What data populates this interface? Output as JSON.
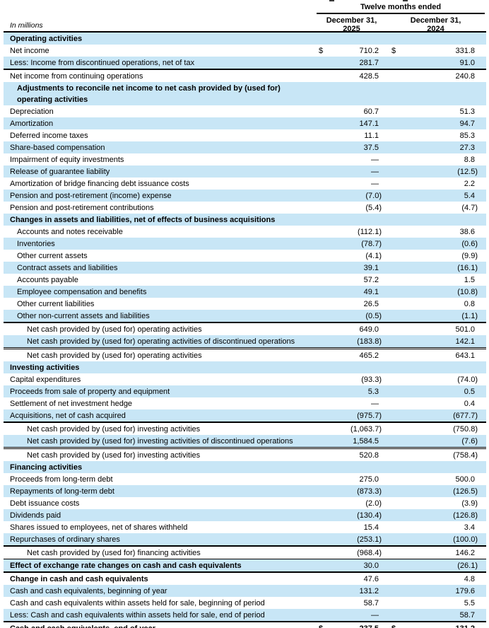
{
  "colors": {
    "row_shade": "#C8E6F6",
    "rule": "#000000",
    "text": "#000000"
  },
  "table": {
    "units_label": "In millions",
    "period_header": "Twelve months ended",
    "columns": [
      {
        "label": "December 31,",
        "year": "2025"
      },
      {
        "label": "December 31,",
        "year": "2024"
      }
    ],
    "rows": [
      {
        "label": "Operating activities",
        "bold": true,
        "shaded": true
      },
      {
        "label": "Net income",
        "v": [
          "710.2",
          "331.8"
        ],
        "dollar": true
      },
      {
        "label": "Less: Income from discontinued operations, net of tax",
        "v": [
          "281.7",
          "91.0"
        ],
        "shaded": true
      },
      {
        "label": "Net income from continuing operations",
        "v": [
          "428.5",
          "240.8"
        ],
        "rule": "thick"
      },
      {
        "label": "Adjustments to reconcile net income to net cash provided by (used for) operating activities",
        "bold": true,
        "shaded": true,
        "indent": 1
      },
      {
        "label": "Depreciation",
        "v": [
          "60.7",
          "51.3"
        ]
      },
      {
        "label": "Amortization",
        "v": [
          "147.1",
          "94.7"
        ],
        "shaded": true
      },
      {
        "label": "Deferred income taxes",
        "v": [
          "11.1",
          "85.3"
        ]
      },
      {
        "label": "Share-based compensation",
        "v": [
          "37.5",
          "27.3"
        ],
        "shaded": true
      },
      {
        "label": "Impairment of equity investments",
        "v": [
          "—",
          "8.8"
        ]
      },
      {
        "label": "Release of guarantee liability",
        "v": [
          "—",
          "(12.5)"
        ],
        "shaded": true
      },
      {
        "label": "Amortization of bridge financing debt issuance costs",
        "v": [
          "—",
          "2.2"
        ]
      },
      {
        "label": "Pension and post-retirement (income) expense",
        "v": [
          "(7.0)",
          "5.4"
        ],
        "shaded": true
      },
      {
        "label": "Pension and post-retirement contributions",
        "v": [
          "(5.4)",
          "(4.7)"
        ]
      },
      {
        "label": "Changes in assets and liabilities, net of effects of business acquisitions",
        "bold": true,
        "shaded": true
      },
      {
        "label": "Accounts and notes receivable",
        "v": [
          "(112.1)",
          "38.6"
        ],
        "indent": 1
      },
      {
        "label": "Inventories",
        "v": [
          "(78.7)",
          "(0.6)"
        ],
        "indent": 1,
        "shaded": true
      },
      {
        "label": "Other current assets",
        "v": [
          "(4.1)",
          "(9.9)"
        ],
        "indent": 1
      },
      {
        "label": "Contract assets and liabilities",
        "v": [
          "39.1",
          "(16.1)"
        ],
        "indent": 1,
        "shaded": true
      },
      {
        "label": "Accounts payable",
        "v": [
          "57.2",
          "1.5"
        ],
        "indent": 1
      },
      {
        "label": "Employee compensation and benefits",
        "v": [
          "49.1",
          "(10.8)"
        ],
        "indent": 1,
        "shaded": true
      },
      {
        "label": "Other current liabilities",
        "v": [
          "26.5",
          "0.8"
        ],
        "indent": 1
      },
      {
        "label": "Other non-current assets and liabilities",
        "v": [
          "(0.5)",
          "(1.1)"
        ],
        "indent": 1,
        "shaded": true
      },
      {
        "label": "Net cash provided by (used for) operating activities",
        "v": [
          "649.0",
          "501.0"
        ],
        "indent": 2,
        "rule": "thick"
      },
      {
        "label": "Net cash provided by (used for) operating activities of discontinued operations",
        "v": [
          "(183.8)",
          "142.1"
        ],
        "indent": 2,
        "shaded": true
      },
      {
        "label": "Net cash provided by (used for) operating activities",
        "v": [
          "465.2",
          "643.1"
        ],
        "indent": 2,
        "rule": "double"
      },
      {
        "label": "Investing activities",
        "bold": true,
        "shaded": true
      },
      {
        "label": "Capital expenditures",
        "v": [
          "(93.3)",
          "(74.0)"
        ]
      },
      {
        "label": "Proceeds from sale of property and equipment",
        "v": [
          "5.3",
          "0.5"
        ],
        "shaded": true
      },
      {
        "label": "Settlement of net investment hedge",
        "v": [
          "—",
          "0.4"
        ]
      },
      {
        "label": "Acquisitions, net of cash acquired",
        "v": [
          "(975.7)",
          "(677.7)"
        ],
        "shaded": true
      },
      {
        "label": "Net cash provided by (used for) investing activities",
        "v": [
          "(1,063.7)",
          "(750.8)"
        ],
        "indent": 2,
        "rule": "thick"
      },
      {
        "label": "Net cash provided by (used for) investing activities of discontinued operations",
        "v": [
          "1,584.5",
          "(7.6)"
        ],
        "indent": 2,
        "shaded": true
      },
      {
        "label": "Net cash provided by (used for) investing activities",
        "v": [
          "520.8",
          "(758.4)"
        ],
        "indent": 2,
        "rule": "double"
      },
      {
        "label": "Financing activities",
        "bold": true,
        "shaded": true
      },
      {
        "label": "Proceeds from long-term debt",
        "v": [
          "275.0",
          "500.0"
        ]
      },
      {
        "label": "Repayments of long-term debt",
        "v": [
          "(873.3)",
          "(126.5)"
        ],
        "shaded": true
      },
      {
        "label": "Debt issuance costs",
        "v": [
          "(2.0)",
          "(3.9)"
        ]
      },
      {
        "label": "Dividends paid",
        "v": [
          "(130.4)",
          "(126.8)"
        ],
        "shaded": true
      },
      {
        "label": "Shares issued to employees, net of shares withheld",
        "v": [
          "15.4",
          "3.4"
        ]
      },
      {
        "label": "Repurchases of ordinary shares",
        "v": [
          "(253.1)",
          "(100.0)"
        ],
        "shaded": true
      },
      {
        "label": "Net cash provided by (used for) financing activities",
        "v": [
          "(968.4)",
          "146.2"
        ],
        "indent": 2,
        "rule": "thick"
      },
      {
        "label": "Effect of exchange rate changes on cash and cash equivalents",
        "v": [
          "30.0",
          "(26.1)"
        ],
        "bold": true,
        "shaded": true,
        "rule": "thin"
      },
      {
        "label": "Change in cash and cash equivalents",
        "v": [
          "47.6",
          "4.8"
        ],
        "bold": true,
        "rule": "thick"
      },
      {
        "label": "Cash and cash equivalents, beginning of year",
        "v": [
          "131.2",
          "179.6"
        ],
        "shaded": true
      },
      {
        "label": "Cash and cash equivalents within assets held for sale, beginning of period",
        "v": [
          "58.7",
          "5.5"
        ]
      },
      {
        "label": "Less: Cash and cash equivalents within assets held for sale, end of period",
        "v": [
          "—",
          "58.7"
        ],
        "shaded": true
      },
      {
        "label": "Cash and cash equivalents, end of year",
        "v": [
          "237.5",
          "131.2"
        ],
        "bold": true,
        "bold_values": true,
        "dollar": true,
        "rule": "thick"
      }
    ]
  }
}
